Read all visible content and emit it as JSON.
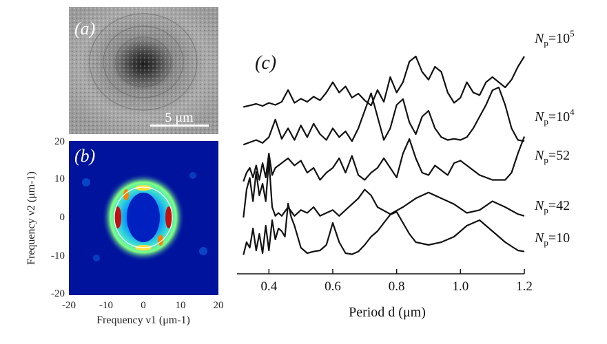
{
  "panel_a": {
    "label": "(a)",
    "scalebar_label": "5 μm"
  },
  "panel_b": {
    "label": "(b)",
    "xlabel": "Frequency ν1 (μm-1)",
    "ylabel": "Frequency ν2 (μm-1)",
    "xticks": [
      "-20",
      "-10",
      "0",
      "10",
      "20"
    ],
    "yticks": [
      "20",
      "10",
      "0",
      "-10",
      "-20"
    ]
  },
  "chart_data": {
    "type": "line",
    "label": "(c)",
    "xlabel": "Period d (μm)",
    "xlim": [
      0.3,
      1.2
    ],
    "xticks": [
      "0.4",
      "0.6",
      "0.8",
      "1.0",
      "1.2"
    ],
    "series": [
      {
        "name": "Np=10^5",
        "label_main": "N",
        "label_sub": "p",
        "label_eq": "=10",
        "label_sup": "5",
        "x": [
          0.32,
          0.34,
          0.36,
          0.38,
          0.4,
          0.42,
          0.44,
          0.46,
          0.48,
          0.5,
          0.52,
          0.54,
          0.56,
          0.58,
          0.6,
          0.62,
          0.64,
          0.66,
          0.68,
          0.7,
          0.72,
          0.74,
          0.76,
          0.78,
          0.8,
          0.82,
          0.84,
          0.86,
          0.88,
          0.9,
          0.92,
          0.94,
          0.96,
          0.98,
          1.0,
          1.02,
          1.04,
          1.06,
          1.08,
          1.1,
          1.12,
          1.14,
          1.16,
          1.18,
          1.2
        ],
        "y": [
          0.02,
          0.05,
          0.08,
          0.04,
          0.1,
          0.06,
          0.12,
          0.35,
          0.1,
          0.18,
          0.12,
          0.22,
          0.15,
          0.3,
          0.5,
          0.3,
          0.42,
          0.2,
          0.28,
          0.15,
          0.05,
          0.35,
          0.12,
          0.6,
          0.3,
          0.5,
          0.9,
          1.0,
          0.7,
          0.55,
          0.8,
          0.7,
          0.3,
          0.1,
          0.2,
          0.5,
          0.3,
          0.25,
          0.5,
          0.6,
          0.5,
          0.4,
          0.55,
          0.8,
          1.0
        ]
      },
      {
        "name": "Np=10^4",
        "label_main": "N",
        "label_sub": "p",
        "label_eq": "=10",
        "label_sup": "4",
        "x": [
          0.32,
          0.34,
          0.36,
          0.38,
          0.4,
          0.42,
          0.44,
          0.46,
          0.48,
          0.5,
          0.52,
          0.54,
          0.56,
          0.58,
          0.6,
          0.62,
          0.64,
          0.66,
          0.68,
          0.7,
          0.72,
          0.74,
          0.76,
          0.78,
          0.8,
          0.82,
          0.84,
          0.86,
          0.88,
          0.9,
          0.92,
          0.94,
          0.96,
          0.98,
          1.0,
          1.02,
          1.04,
          1.06,
          1.08,
          1.1,
          1.12,
          1.14,
          1.16,
          1.18,
          1.2
        ],
        "y": [
          0.02,
          0.06,
          0.1,
          0.05,
          0.15,
          0.45,
          0.12,
          0.3,
          0.1,
          0.35,
          0.15,
          0.38,
          0.2,
          0.1,
          0.3,
          0.15,
          0.25,
          0.08,
          0.3,
          0.6,
          0.9,
          0.5,
          0.1,
          0.3,
          0.7,
          0.8,
          0.4,
          0.2,
          0.5,
          0.6,
          0.3,
          0.15,
          0.1,
          0.12,
          0.1,
          0.15,
          0.3,
          0.5,
          0.7,
          0.95,
          1.0,
          0.7,
          0.3,
          0.1,
          0.08
        ]
      },
      {
        "name": "Np=52",
        "label_main": "N",
        "label_sub": "p",
        "label_eq": "=52",
        "label_sup": "",
        "x": [
          0.32,
          0.33,
          0.34,
          0.35,
          0.36,
          0.37,
          0.38,
          0.39,
          0.4,
          0.41,
          0.42,
          0.44,
          0.46,
          0.48,
          0.5,
          0.52,
          0.54,
          0.56,
          0.58,
          0.6,
          0.62,
          0.64,
          0.66,
          0.68,
          0.7,
          0.72,
          0.74,
          0.76,
          0.78,
          0.8,
          0.82,
          0.84,
          0.86,
          0.88,
          0.9,
          0.92,
          0.94,
          0.96,
          0.98,
          1.0,
          1.02,
          1.06,
          1.1,
          1.14,
          1.16,
          1.18,
          1.2
        ],
        "y": [
          0.02,
          0.2,
          0.3,
          0.1,
          0.35,
          0.05,
          0.4,
          0.1,
          0.6,
          0.15,
          0.3,
          0.4,
          0.5,
          0.35,
          0.45,
          0.2,
          0.3,
          0.05,
          0.2,
          0.3,
          0.5,
          0.2,
          0.55,
          0.15,
          0.05,
          0.2,
          0.3,
          0.5,
          0.3,
          0.1,
          0.6,
          0.9,
          0.5,
          0.2,
          0.15,
          0.35,
          0.25,
          0.15,
          0.4,
          0.45,
          0.35,
          0.15,
          0.05,
          0.05,
          0.2,
          0.6,
          0.95
        ]
      },
      {
        "name": "Np=42",
        "label_main": "N",
        "label_sub": "p",
        "label_eq": "=42",
        "label_sup": "",
        "x": [
          0.32,
          0.33,
          0.34,
          0.35,
          0.36,
          0.37,
          0.38,
          0.39,
          0.4,
          0.41,
          0.42,
          0.43,
          0.44,
          0.46,
          0.48,
          0.5,
          0.52,
          0.54,
          0.56,
          0.58,
          0.6,
          0.62,
          0.64,
          0.66,
          0.68,
          0.7,
          0.72,
          0.74,
          0.78,
          0.82,
          0.86,
          0.9,
          0.94,
          0.98,
          1.02,
          1.06,
          1.1,
          1.14,
          1.18,
          1.2
        ],
        "y": [
          0.02,
          0.5,
          0.7,
          0.3,
          0.8,
          0.4,
          0.6,
          0.3,
          1.0,
          0.2,
          0.05,
          0.1,
          0.05,
          0.2,
          0.05,
          0.15,
          0.1,
          0.2,
          0.05,
          0.1,
          0.15,
          0.05,
          0.15,
          0.25,
          0.35,
          0.5,
          0.4,
          0.2,
          0.08,
          0.2,
          0.35,
          0.45,
          0.35,
          0.25,
          0.1,
          0.15,
          0.3,
          0.2,
          0.08,
          0.05
        ]
      },
      {
        "name": "Np=10",
        "label_main": "N",
        "label_sub": "p",
        "label_eq": "=10",
        "label_sup": "",
        "x": [
          0.32,
          0.33,
          0.34,
          0.35,
          0.36,
          0.37,
          0.38,
          0.39,
          0.4,
          0.41,
          0.42,
          0.43,
          0.44,
          0.45,
          0.46,
          0.47,
          0.48,
          0.5,
          0.52,
          0.54,
          0.56,
          0.58,
          0.6,
          0.62,
          0.64,
          0.66,
          0.68,
          0.7,
          0.72,
          0.74,
          0.76,
          0.78,
          0.8,
          0.82,
          0.84,
          0.86,
          0.9,
          0.94,
          0.98,
          1.02,
          1.06,
          1.1,
          1.14,
          1.18,
          1.2
        ],
        "y": [
          0.02,
          0.25,
          0.15,
          0.5,
          0.1,
          0.4,
          0.05,
          0.55,
          0.1,
          0.65,
          0.3,
          0.5,
          0.45,
          0.35,
          0.95,
          0.7,
          0.55,
          0.15,
          0.05,
          0.08,
          0.1,
          0.2,
          0.6,
          0.25,
          0.05,
          0.03,
          0.08,
          0.2,
          0.35,
          0.45,
          0.6,
          0.75,
          0.8,
          0.6,
          0.4,
          0.25,
          0.2,
          0.25,
          0.35,
          0.55,
          0.65,
          0.45,
          0.25,
          0.1,
          0.08
        ]
      }
    ]
  }
}
